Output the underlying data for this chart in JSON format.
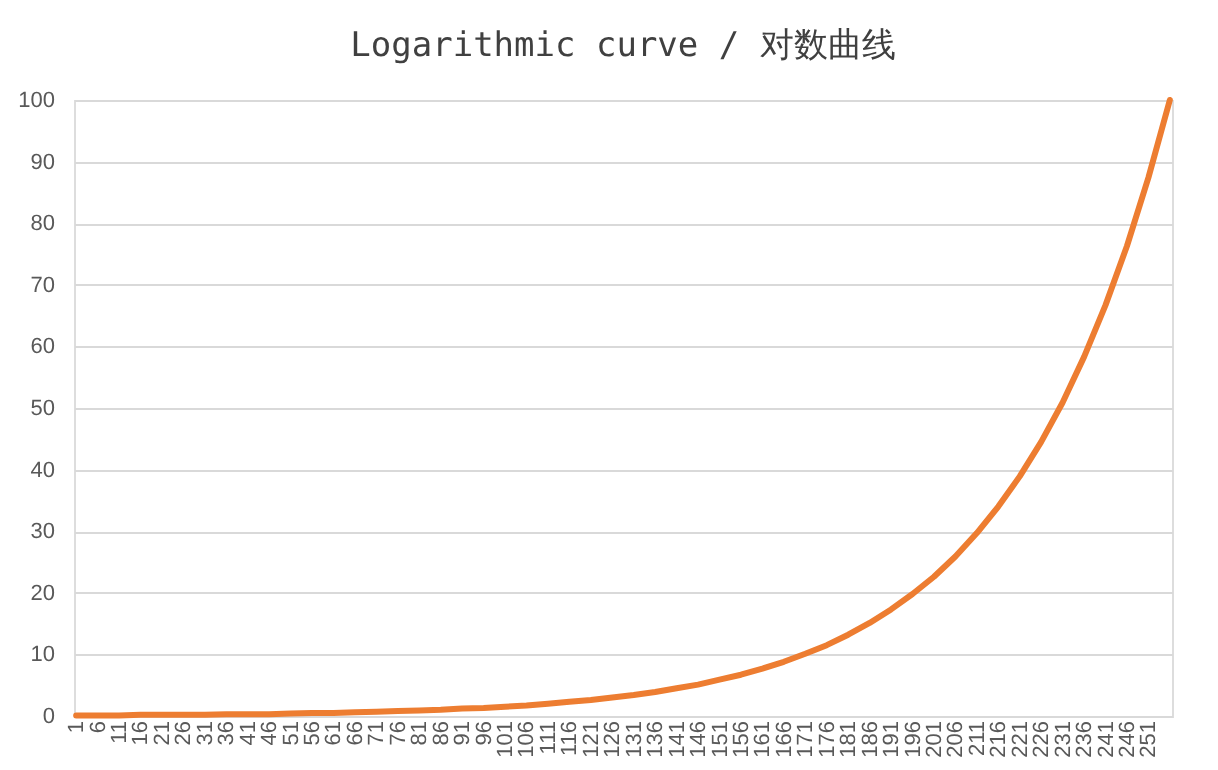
{
  "chart_data": {
    "type": "line",
    "title": "Logarithmic curve / 对数曲线",
    "x": [
      1,
      6,
      11,
      16,
      21,
      26,
      31,
      36,
      41,
      46,
      51,
      56,
      61,
      66,
      71,
      76,
      81,
      86,
      91,
      96,
      101,
      106,
      111,
      116,
      121,
      126,
      131,
      136,
      141,
      146,
      151,
      156,
      161,
      166,
      171,
      176,
      181,
      186,
      191,
      196,
      201,
      206,
      211,
      216,
      221,
      226,
      231,
      236,
      241,
      246,
      251,
      256
    ],
    "series": [
      {
        "color": "#ed7d31",
        "values": [
          0.1,
          0.1,
          0.1,
          0.2,
          0.2,
          0.2,
          0.2,
          0.3,
          0.3,
          0.3,
          0.4,
          0.5,
          0.5,
          0.6,
          0.7,
          0.8,
          0.9,
          1.0,
          1.2,
          1.3,
          1.5,
          1.7,
          2.0,
          2.3,
          2.6,
          3.0,
          3.4,
          3.9,
          4.5,
          5.1,
          5.9,
          6.7,
          7.7,
          8.8,
          10.1,
          11.5,
          13.2,
          15.1,
          17.3,
          19.8,
          22.6,
          25.9,
          29.7,
          34.0,
          38.9,
          44.5,
          50.9,
          58.3,
          66.7,
          76.3,
          87.4,
          100
        ]
      }
    ],
    "xlim": [
      0.5,
      256.5
    ],
    "xticks": [
      1,
      6,
      11,
      16,
      21,
      26,
      31,
      36,
      41,
      46,
      51,
      56,
      61,
      66,
      71,
      76,
      81,
      86,
      91,
      96,
      101,
      106,
      111,
      116,
      121,
      126,
      131,
      136,
      141,
      146,
      151,
      156,
      161,
      166,
      171,
      176,
      181,
      186,
      191,
      196,
      201,
      206,
      211,
      216,
      221,
      226,
      231,
      236,
      241,
      246,
      251
    ],
    "ylim": [
      0,
      100
    ],
    "yticks": [
      0,
      10,
      20,
      30,
      40,
      50,
      60,
      70,
      80,
      90,
      100
    ],
    "grid": "y",
    "marker": "none",
    "line_style": "solid"
  }
}
